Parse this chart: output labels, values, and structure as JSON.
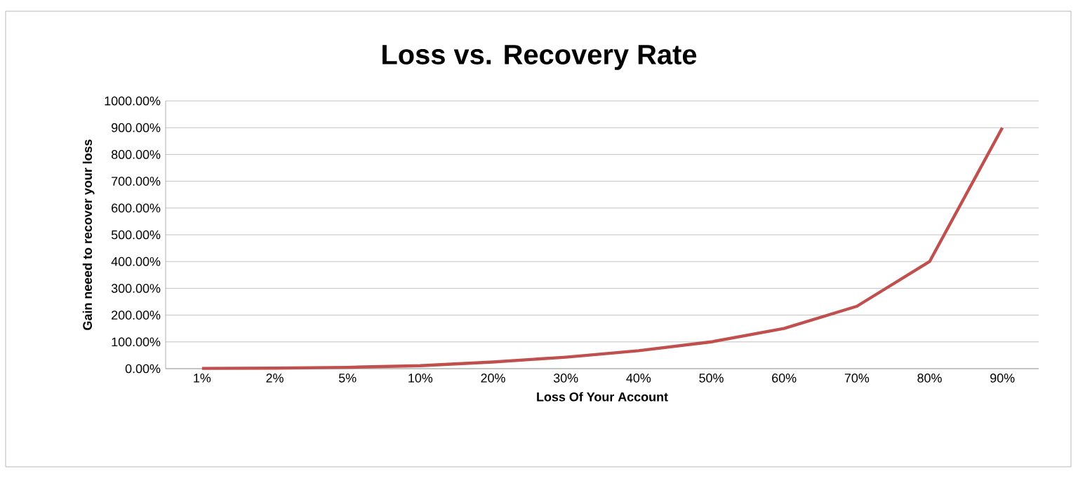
{
  "chart_data": {
    "type": "line",
    "title": "Loss vs. Recovery Rate",
    "xlabel": "Loss Of Your Account",
    "ylabel": "Gain neeed to recover your loss",
    "categories": [
      "1%",
      "2%",
      "5%",
      "10%",
      "20%",
      "30%",
      "40%",
      "50%",
      "60%",
      "70%",
      "80%",
      "90%"
    ],
    "series": [
      {
        "color": "#c0504d",
        "values": [
          1,
          2,
          5,
          11,
          25,
          43,
          67,
          100,
          150,
          233,
          400,
          900
        ]
      }
    ],
    "ylim": [
      0,
      1000
    ],
    "yticks": [
      {
        "value": 0,
        "label": "0.00%"
      },
      {
        "value": 100,
        "label": "100.00%"
      },
      {
        "value": 200,
        "label": "200.00%"
      },
      {
        "value": 300,
        "label": "300.00%"
      },
      {
        "value": 400,
        "label": "400.00%"
      },
      {
        "value": 500,
        "label": "500.00%"
      },
      {
        "value": 600,
        "label": "600.00%"
      },
      {
        "value": 700,
        "label": "700.00%"
      },
      {
        "value": 800,
        "label": "800.00%"
      },
      {
        "value": 900,
        "label": "900.00%"
      },
      {
        "value": 1000,
        "label": "1000.00%"
      }
    ],
    "grid": "y"
  }
}
